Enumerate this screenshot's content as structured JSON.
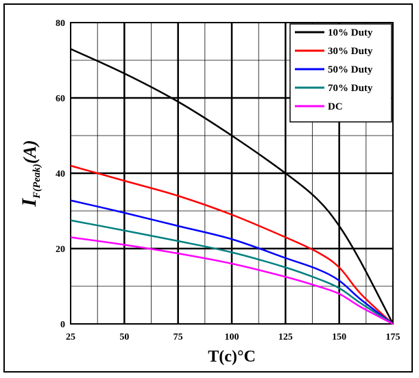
{
  "chart_data": {
    "type": "line",
    "xlabel": "T(c)°C",
    "ylabel_main": "I",
    "ylabel_sub": "F(Peak)",
    "ylabel_unit": "(A)",
    "xlim": [
      25,
      175
    ],
    "ylim": [
      0,
      80
    ],
    "x_ticks": [
      "25",
      "50",
      "75",
      "100",
      "125",
      "150",
      "175"
    ],
    "y_ticks": [
      "0",
      "20",
      "40",
      "60",
      "80"
    ],
    "grid": true,
    "legend_position": "top-right",
    "series": [
      {
        "name": "10% Duty",
        "color": "#000000",
        "x": [
          25,
          50,
          75,
          100,
          125,
          140,
          150,
          160,
          175
        ],
        "y": [
          73,
          66.5,
          59,
          50,
          40,
          33,
          26,
          16.5,
          0
        ]
      },
      {
        "name": "30% Duty",
        "color": "#ff0000",
        "x": [
          25,
          50,
          75,
          100,
          125,
          140,
          150,
          160,
          175
        ],
        "y": [
          42,
          38,
          34,
          29,
          23,
          19,
          15,
          8,
          0
        ]
      },
      {
        "name": "50% Duty",
        "color": "#0000ff",
        "x": [
          25,
          50,
          75,
          100,
          125,
          140,
          150,
          160,
          175
        ],
        "y": [
          32.8,
          29.5,
          26,
          22.5,
          17.5,
          14.5,
          11.5,
          6.5,
          0
        ]
      },
      {
        "name": "70% Duty",
        "color": "#008080",
        "x": [
          25,
          50,
          75,
          100,
          125,
          140,
          150,
          160,
          175
        ],
        "y": [
          27.5,
          24.8,
          22,
          19,
          15,
          12,
          9.5,
          5.5,
          0
        ]
      },
      {
        "name": "DC",
        "color": "#ff00ff",
        "x": [
          25,
          50,
          75,
          100,
          125,
          140,
          150,
          160,
          175
        ],
        "y": [
          23,
          21,
          18.7,
          16,
          12.5,
          10,
          8,
          4.5,
          0
        ]
      }
    ]
  }
}
